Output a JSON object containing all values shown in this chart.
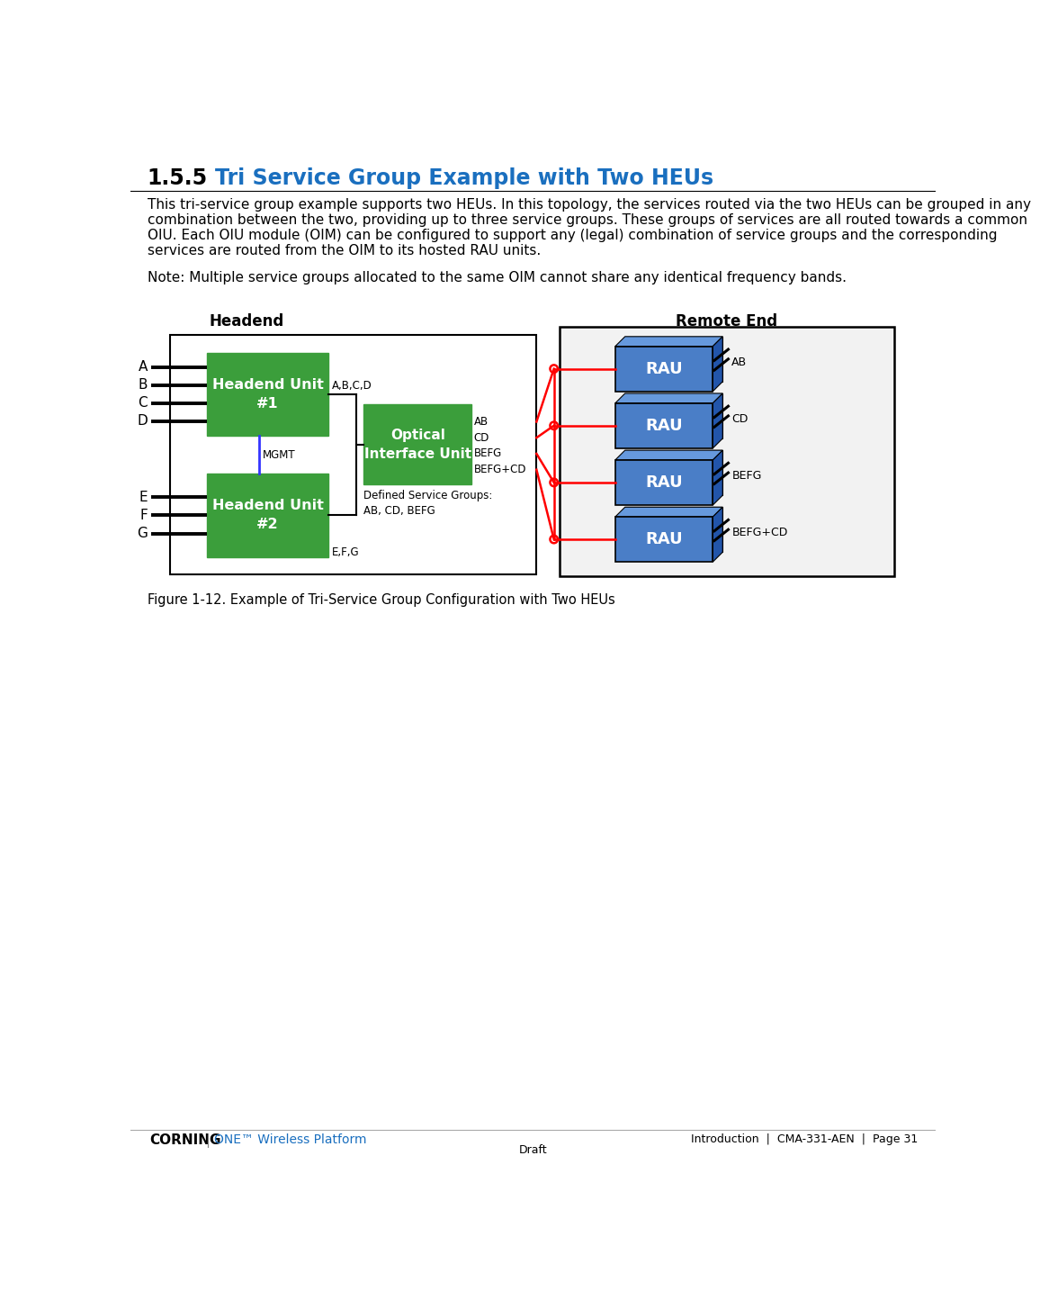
{
  "title_num": "1.5.5",
  "title_text": "    Tri Service Group Example with Two HEUs",
  "title_color": "#1A6FBF",
  "body_text_lines": [
    "This tri-service group example supports two HEUs. In this topology, the services routed via the two HEUs can be grouped in any",
    "combination between the two, providing up to three service groups. These groups of services are all routed towards a common",
    "OIU. Each OIU module (OIM) can be configured to support any (legal) combination of service groups and the corresponding",
    "services are routed from the OIM to its hosted RAU units."
  ],
  "note_text": "Note: Multiple service groups allocated to the same OIM cannot share any identical frequency bands.",
  "figure_caption": "Figure 1-12. Example of Tri-Service Group Configuration with Two HEUs",
  "headend_label": "Headend",
  "remote_label": "Remote End",
  "heu1_label": "Headend Unit\n#1",
  "heu2_label": "Headend Unit\n#2",
  "oiu_label": "Optical\nInterface Unit",
  "rau_label": "RAU",
  "heu1_inputs": [
    "A",
    "B",
    "C",
    "D"
  ],
  "heu2_inputs": [
    "E",
    "F",
    "G"
  ],
  "heu1_output_label": "A,B,C,D",
  "heu2_output_label": "E,F,G",
  "oiu_out_labels": [
    "AB",
    "CD",
    "BEFG",
    "BEFG+CD"
  ],
  "rau_antenna_labels": [
    "AB",
    "CD",
    "BEFG",
    "BEFG+CD"
  ],
  "defined_svc_label": "Defined Service Groups:\nAB, CD, BEFG",
  "mgmt_label": "MGMT",
  "green_color": "#3B9E3B",
  "rau_front_color": "#4A7EC7",
  "rau_top_color": "#6699DD",
  "rau_right_color": "#2255AA",
  "rau_back_color": "#1A4488",
  "red_color": "#FF0000",
  "blue_line_color": "#3333FF",
  "black": "#000000",
  "white": "#FFFFFF",
  "bg_color": "#FFFFFF",
  "footer_line_color": "#AAAAAA",
  "corning_color": "#000000",
  "one_color": "#1A6FBF"
}
